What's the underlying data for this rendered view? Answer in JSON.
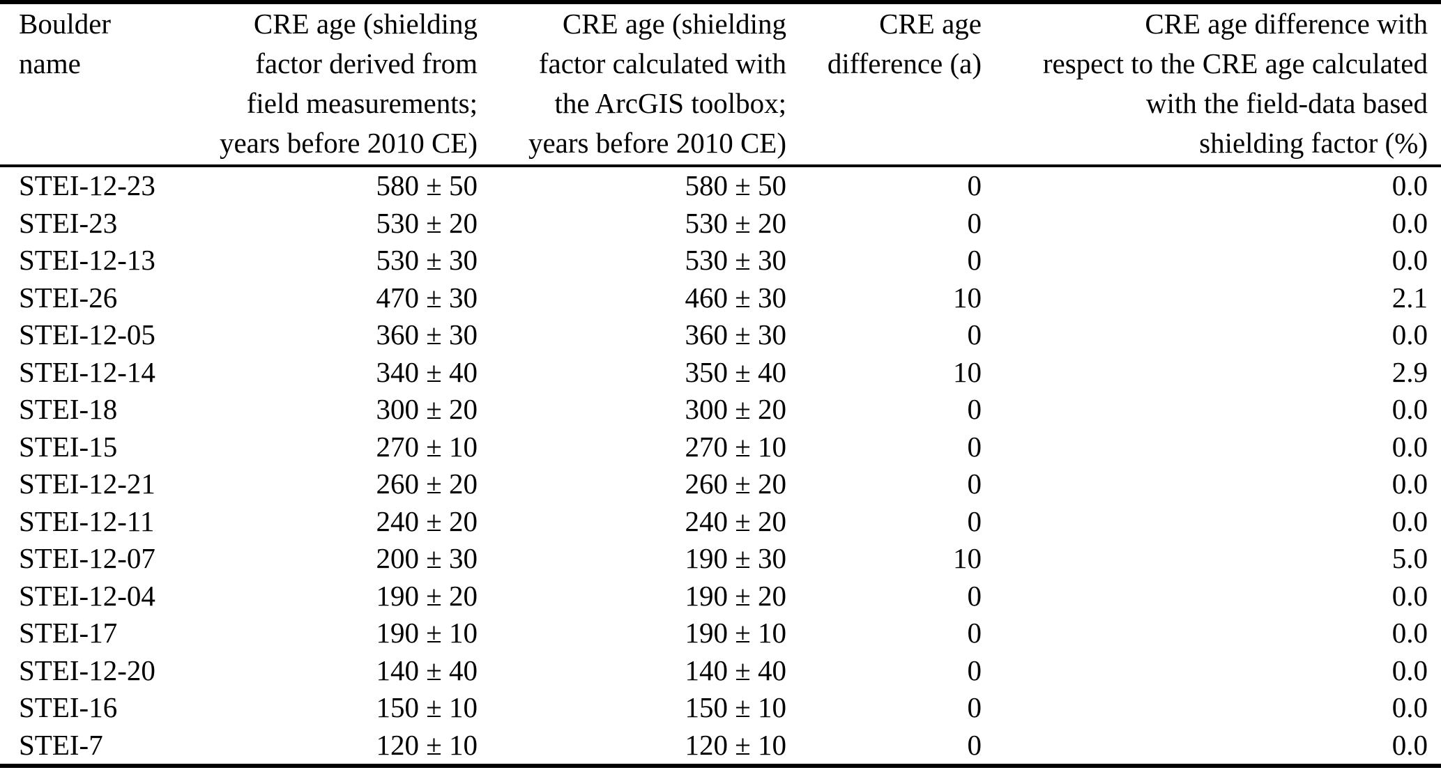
{
  "page": {
    "background_color": "#ffffff",
    "text_color": "#000000",
    "kind": "scientific paper table"
  },
  "table": {
    "columns": [
      {
        "id": "name",
        "label": "Boulder\nname",
        "align": "left"
      },
      {
        "id": "age_field",
        "label": "CRE age (shielding\nfactor derived from\nfield measurements;\nyears before 2010 CE)",
        "align": "right"
      },
      {
        "id": "age_arcgis",
        "label": "CRE age (shielding\nfactor calculated with\nthe ArcGIS toolbox;\nyears before 2010 CE)",
        "align": "right"
      },
      {
        "id": "diff",
        "label": "CRE age\ndifference (a)",
        "align": "right"
      },
      {
        "id": "diff_pct",
        "label": "CRE age difference with\nrespect to the CRE age calculated\nwith the field-data based\nshielding factor (%)",
        "align": "right"
      }
    ],
    "rows": [
      {
        "name": "STEI-12-23",
        "age_field": "580 ± 50",
        "age_arcgis": "580 ± 50",
        "diff": "0",
        "diff_pct": "0.0"
      },
      {
        "name": "STEI-23",
        "age_field": "530 ± 20",
        "age_arcgis": "530 ± 20",
        "diff": "0",
        "diff_pct": "0.0"
      },
      {
        "name": "STEI-12-13",
        "age_field": "530 ± 30",
        "age_arcgis": "530 ± 30",
        "diff": "0",
        "diff_pct": "0.0"
      },
      {
        "name": "STEI-26",
        "age_field": "470 ± 30",
        "age_arcgis": "460 ± 30",
        "diff": "10",
        "diff_pct": "2.1"
      },
      {
        "name": "STEI-12-05",
        "age_field": "360 ± 30",
        "age_arcgis": "360 ± 30",
        "diff": "0",
        "diff_pct": "0.0"
      },
      {
        "name": "STEI-12-14",
        "age_field": "340 ± 40",
        "age_arcgis": "350 ± 40",
        "diff": "10",
        "diff_pct": "2.9"
      },
      {
        "name": "STEI-18",
        "age_field": "300 ± 20",
        "age_arcgis": "300 ± 20",
        "diff": "0",
        "diff_pct": "0.0"
      },
      {
        "name": "STEI-15",
        "age_field": "270 ± 10",
        "age_arcgis": "270 ± 10",
        "diff": "0",
        "diff_pct": "0.0"
      },
      {
        "name": "STEI-12-21",
        "age_field": "260 ± 20",
        "age_arcgis": "260 ± 20",
        "diff": "0",
        "diff_pct": "0.0"
      },
      {
        "name": "STEI-12-11",
        "age_field": "240 ± 20",
        "age_arcgis": "240 ± 20",
        "diff": "0",
        "diff_pct": "0.0"
      },
      {
        "name": "STEI-12-07",
        "age_field": "200 ± 30",
        "age_arcgis": "190 ± 30",
        "diff": "10",
        "diff_pct": "5.0"
      },
      {
        "name": "STEI-12-04",
        "age_field": "190 ± 20",
        "age_arcgis": "190 ± 20",
        "diff": "0",
        "diff_pct": "0.0"
      },
      {
        "name": "STEI-17",
        "age_field": "190 ± 10",
        "age_arcgis": "190 ± 10",
        "diff": "0",
        "diff_pct": "0.0"
      },
      {
        "name": "STEI-12-20",
        "age_field": "140 ± 40",
        "age_arcgis": "140 ± 40",
        "diff": "0",
        "diff_pct": "0.0"
      },
      {
        "name": "STEI-16",
        "age_field": "150 ± 10",
        "age_arcgis": "150 ± 10",
        "diff": "0",
        "diff_pct": "0.0"
      },
      {
        "name": "STEI-7",
        "age_field": "120 ± 10",
        "age_arcgis": "120 ± 10",
        "diff": "0",
        "diff_pct": "0.0"
      }
    ]
  }
}
